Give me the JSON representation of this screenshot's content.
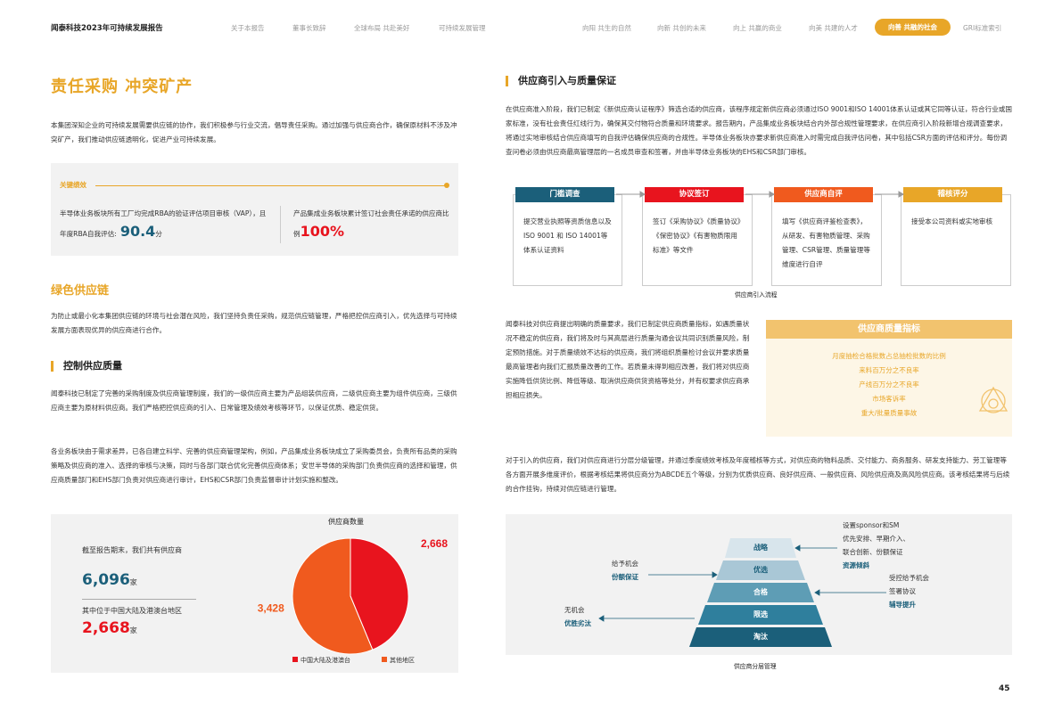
{
  "header": {
    "brand": "闻泰科技2023年可持续发展报告",
    "nav": [
      "关于本报告",
      "董事长致辞",
      "全球布局 共赴美好",
      "可持续发展管理",
      "向阳 共生的自然",
      "向新 共创的未来",
      "向上 共赢的商业",
      "向美 共建的人才",
      "向善 共融的社会",
      "GRI标准索引"
    ]
  },
  "left": {
    "title": "责任采购 冲突矿产",
    "intro": "本集团深知企业的可持续发展需要供应链的协作，我们积极参与行业交流，倡导责任采购。通过加强与供应商合作，确保原材料不涉及冲突矿产，我们推动供应链透明化，促进产业可持续发展。",
    "kpi": {
      "label": "关键绩效",
      "item1_text": "半导体业务板块所有工厂均完成RBA的验证评估项目审核（VAP），且年度RBA自我评估:",
      "item1_value": "90.4",
      "item1_unit": "分",
      "item2_text": "产品集成业务板块累计签订社会责任承诺的供应商比例",
      "item2_value": "100%"
    },
    "green_title": "绿色供应链",
    "green_text": "为防止或最小化本集团供应链的环境与社会潜在风险，我们坚持负责任采购，规范供应链管理，严格把控供应商引入，优先选择与可持续发展方面表现优异的供应商进行合作。",
    "control_title": "控制供应质量",
    "control_p1": "闻泰科技已制定了完善的采购制度及供应商管理制度，我们的一级供应商主要为产品组装供应商，二级供应商主要为组件供应商，三级供应商主要为原材料供应商。我们严格把控供应商的引入、日常管理及绩效考核等环节，以保证优质、稳定供货。",
    "control_p2": "各业务板块由于需求差异，已各自建立科学、完善的供应商管理架构，例如，产品集成业务板块成立了采购委员会，负责所有品类的采购策略及供应商的准入、选择的审核与决策，同时与各部门联合优化完善供应商体系；安世半导体的采购部门负责供应商的选择和管理，供应商质量部门和EHS部门负责对供应商进行审计，EHS和CSR部门负责监督审计计划实施和整改。",
    "stats": {
      "label1": "截至报告期末，我们共有供应商",
      "value1": "6,096",
      "unit1": "家",
      "label2": "其中位于中国大陆及港澳台地区",
      "value2": "2,668",
      "unit2": "家"
    }
  },
  "chart_data": {
    "type": "pie",
    "title": "供应商数量",
    "categories": [
      "中国大陆及港澳台",
      "其他地区"
    ],
    "values": [
      2668,
      3428
    ],
    "labels": [
      "2,668",
      "3,428"
    ],
    "colors": [
      "#e8141e",
      "#f05a1e"
    ]
  },
  "right": {
    "intro_title": "供应商引入与质量保证",
    "intro_text": "在供应商准入阶段，我们已制定《新供应商认证程序》筛选合适的供应商，该程序规定新供应商必须通过ISO 9001和ISO 14001体系认证或其它同等认证，符合行业或国家标准，没有社会责任红线行为，确保其交付物符合质量和环境要求。报告期内，产品集成业务板块结合内外部合规性管理要求，在供应商引入阶段新增合规调查要求，将通过实地审核结合供应商填写的自我评估确保供应商的合规性。半导体业务板块亦要求新供应商准入时需完成自我评估问卷，其中包括CSR方面的评估和评分。每份调查问卷必须由供应商最高管理层的一名成员审查和签署，并由半导体业务板块的EHS和CSR部门审核。",
    "flow": [
      {
        "head": "门槛调查",
        "body": "提交营业执照等资质信息以及ISO 9001 和 ISO 14001等体系认证资料",
        "color": "#1b5f7a"
      },
      {
        "head": "协议签订",
        "body": "签订《采购协议》《质量协议》《保密协议》《有害物质限用标准》等文件",
        "color": "#e8141e"
      },
      {
        "head": "供应商自评",
        "body": "填写《供应商评鉴检查表》，从研发、有害物质管理、采购管理、CSR管理、质量管理等维度进行自评",
        "color": "#f05a1e"
      },
      {
        "head": "稽核评分",
        "body": "接受本公司资料或实地审核",
        "color": "#e8a628"
      }
    ],
    "flow_caption": "供应商引入流程",
    "quality_text": "闻泰科技对供应商提出明确的质量要求，我们已制定供应商质量指标，如遇质量状况不稳定的供应商，我们将及时与其高层进行质量沟通会议共同识别质量风险，制定预防措施。对于质量绩效不达标的供应商，我们将组织质量检讨会议并要求质量最高管理者向我们汇报质量改善的工作。若质量未得到相应改善，我们将对供应商实施降低供货比例、降低等级、取消供应商供货资格等处分，并有权要求供应商承担相应损失。",
    "indicator": {
      "title": "供应商质量指标",
      "items": [
        "月度抽检合格批数占总抽检批数的比例",
        "来料百万分之不良率",
        "产线百万分之不良率",
        "市场客诉率",
        "重大/批量质量事故"
      ]
    },
    "tier_text": "对于引入的供应商，我们对供应商进行分层分级管理，并通过季度绩效考核及年度稽核等方式，对供应商的物料品质、交付能力、商务服务、研发支持能力、劳工管理等各方面开展多维度评价，根据考核结果将供应商分为ABCDE五个等级，分别为优质供应商、良好供应商、一般供应商、风险供应商及高风险供应商。该考核结果将与后续的合作挂钩，持续对供应链进行管理。",
    "pyramid": {
      "levels": [
        "战略",
        "优选",
        "合格",
        "限选",
        "淘汰"
      ],
      "right_top": [
        "设置sponsor和SM",
        "优先安排、早期介入、",
        "联合创新、份额保证"
      ],
      "right_top_bold": "资源倾斜",
      "right_mid": [
        "受控给予机会",
        "签署协议"
      ],
      "right_mid_bold": "辅导提升",
      "left_top": "给予机会",
      "left_top_bold": "份额保证",
      "left_bot": "无机会",
      "left_bot_bold": "优胜劣汰",
      "caption": "供应商分层管理"
    }
  },
  "page_number": "45"
}
